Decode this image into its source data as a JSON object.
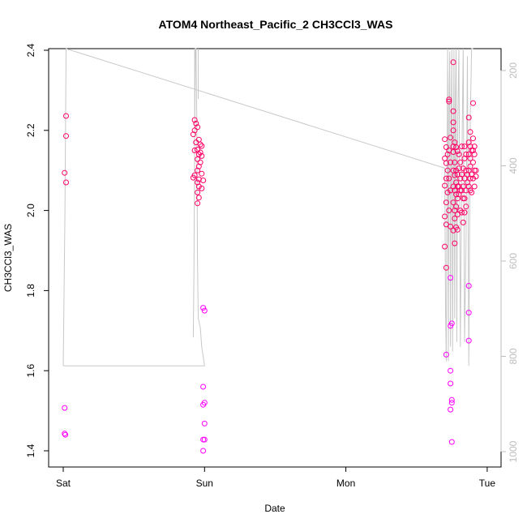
{
  "chart_data": {
    "type": "scatter",
    "title": "ATOM4 Northeast_Pacific_2 CH3CCl3_WAS",
    "xlabel": "Date",
    "ylabel": "CH3CCl3_WAS",
    "x_ticks": [
      "Sat",
      "Sun",
      "Mon",
      "Tue"
    ],
    "x_tick_days": [
      0,
      1,
      2,
      3
    ],
    "xlim_days": [
      -0.03,
      3.07
    ],
    "ylim": [
      1.35,
      2.4
    ],
    "y_ticks": [
      1.4,
      1.6,
      1.8,
      2.0,
      2.2,
      2.4
    ],
    "y2_ticks": [
      200,
      400,
      600,
      800,
      1000
    ],
    "y2lim": [
      1050,
      150
    ],
    "grid": false,
    "series": [
      {
        "marker": "circle-open",
        "color_range": [
          "#ff00ff",
          "#ff0066"
        ],
        "points": [
          [
            0.02,
            2.236
          ],
          [
            0.02,
            2.186
          ],
          [
            0.01,
            2.094
          ],
          [
            0.02,
            2.07
          ],
          [
            0.01,
            1.507
          ],
          [
            0.01,
            1.443
          ],
          [
            0.015,
            1.44
          ],
          [
            0.93,
            2.226
          ],
          [
            0.94,
            2.217
          ],
          [
            0.95,
            2.208
          ],
          [
            0.93,
            2.2
          ],
          [
            0.92,
            2.19
          ],
          [
            0.96,
            2.177
          ],
          [
            0.94,
            2.17
          ],
          [
            0.97,
            2.165
          ],
          [
            0.98,
            2.161
          ],
          [
            0.95,
            2.152
          ],
          [
            0.93,
            2.15
          ],
          [
            0.97,
            2.145
          ],
          [
            0.96,
            2.14
          ],
          [
            0.98,
            2.136
          ],
          [
            0.95,
            2.128
          ],
          [
            0.97,
            2.12
          ],
          [
            0.96,
            2.11
          ],
          [
            0.95,
            2.1
          ],
          [
            0.98,
            2.092
          ],
          [
            0.93,
            2.088
          ],
          [
            0.92,
            2.082
          ],
          [
            0.96,
            2.078
          ],
          [
            0.99,
            2.075
          ],
          [
            0.95,
            2.07
          ],
          [
            0.96,
            2.06
          ],
          [
            0.98,
            2.055
          ],
          [
            0.95,
            2.045
          ],
          [
            0.96,
            2.032
          ],
          [
            0.95,
            2.018
          ],
          [
            0.99,
            1.757
          ],
          [
            1.0,
            1.75
          ],
          [
            0.99,
            1.56
          ],
          [
            1.0,
            1.52
          ],
          [
            0.99,
            1.515
          ],
          [
            1.0,
            1.468
          ],
          [
            0.99,
            1.428
          ],
          [
            1.0,
            1.428
          ],
          [
            0.99,
            1.4
          ],
          [
            2.7,
            2.178
          ],
          [
            2.71,
            2.158
          ],
          [
            2.72,
            2.14
          ],
          [
            2.7,
            2.13
          ],
          [
            2.71,
            2.118
          ],
          [
            2.72,
            2.1
          ],
          [
            2.71,
            2.08
          ],
          [
            2.7,
            2.062
          ],
          [
            2.72,
            2.045
          ],
          [
            2.71,
            2.02
          ],
          [
            2.7,
            1.985
          ],
          [
            2.71,
            1.965
          ],
          [
            2.7,
            1.91
          ],
          [
            2.71,
            1.857
          ],
          [
            2.71,
            1.64
          ],
          [
            2.73,
            2.277
          ],
          [
            2.73,
            2.272
          ],
          [
            2.74,
            2.182
          ],
          [
            2.73,
            2.15
          ],
          [
            2.74,
            2.12
          ],
          [
            2.73,
            2.08
          ],
          [
            2.74,
            2.05
          ],
          [
            2.73,
            2.0
          ],
          [
            2.74,
            1.96
          ],
          [
            2.74,
            1.832
          ],
          [
            2.74,
            1.712
          ],
          [
            2.75,
            1.718
          ],
          [
            2.74,
            1.6
          ],
          [
            2.74,
            1.568
          ],
          [
            2.75,
            1.527
          ],
          [
            2.75,
            1.52
          ],
          [
            2.74,
            1.503
          ],
          [
            2.75,
            1.422
          ],
          [
            2.76,
            2.37
          ],
          [
            2.76,
            2.248
          ],
          [
            2.76,
            2.22
          ],
          [
            2.76,
            2.2
          ],
          [
            2.77,
            2.17
          ],
          [
            2.76,
            2.16
          ],
          [
            2.76,
            2.146
          ],
          [
            2.77,
            2.12
          ],
          [
            2.76,
            2.1
          ],
          [
            2.77,
            2.088
          ],
          [
            2.76,
            2.06
          ],
          [
            2.77,
            2.05
          ],
          [
            2.76,
            2.02
          ],
          [
            2.77,
            2.0
          ],
          [
            2.77,
            1.98
          ],
          [
            2.76,
            1.95
          ],
          [
            2.77,
            1.918
          ],
          [
            2.78,
            2.158
          ],
          [
            2.79,
            2.148
          ],
          [
            2.78,
            2.1
          ],
          [
            2.79,
            2.09
          ],
          [
            2.78,
            2.07
          ],
          [
            2.79,
            2.06
          ],
          [
            2.78,
            2.04
          ],
          [
            2.79,
            2.03
          ],
          [
            2.78,
            2.01
          ],
          [
            2.79,
            1.99
          ],
          [
            2.78,
            1.958
          ],
          [
            2.79,
            1.952
          ],
          [
            2.8,
            2.14
          ],
          [
            2.81,
            2.12
          ],
          [
            2.8,
            2.105
          ],
          [
            2.81,
            2.08
          ],
          [
            2.8,
            2.06
          ],
          [
            2.81,
            2.05
          ],
          [
            2.8,
            2.04
          ],
          [
            2.81,
            2.0
          ],
          [
            2.82,
            2.16
          ],
          [
            2.83,
            2.105
          ],
          [
            2.82,
            2.09
          ],
          [
            2.83,
            2.06
          ],
          [
            2.82,
            2.05
          ],
          [
            2.83,
            2.03
          ],
          [
            2.82,
            1.995
          ],
          [
            2.83,
            1.97
          ],
          [
            2.84,
            2.16
          ],
          [
            2.85,
            2.14
          ],
          [
            2.84,
            2.13
          ],
          [
            2.85,
            2.1
          ],
          [
            2.84,
            2.08
          ],
          [
            2.85,
            2.05
          ],
          [
            2.84,
            2.03
          ],
          [
            2.85,
            2.01
          ],
          [
            2.84,
            1.995
          ],
          [
            2.86,
            2.09
          ],
          [
            2.86,
            2.07
          ],
          [
            2.87,
            2.232
          ],
          [
            2.88,
            2.196
          ],
          [
            2.87,
            2.17
          ],
          [
            2.88,
            2.16
          ],
          [
            2.87,
            2.14
          ],
          [
            2.88,
            2.13
          ],
          [
            2.89,
            2.15
          ],
          [
            2.88,
            2.11
          ],
          [
            2.87,
            2.1
          ],
          [
            2.89,
            2.09
          ],
          [
            2.88,
            2.08
          ],
          [
            2.87,
            2.06
          ],
          [
            2.88,
            2.05
          ],
          [
            2.89,
            2.045
          ],
          [
            2.87,
            1.812
          ],
          [
            2.87,
            1.745
          ],
          [
            2.87,
            1.675
          ],
          [
            2.9,
            2.268
          ],
          [
            2.9,
            2.18
          ],
          [
            2.91,
            2.16
          ],
          [
            2.9,
            2.15
          ],
          [
            2.91,
            2.14
          ],
          [
            2.9,
            2.12
          ],
          [
            2.91,
            2.1
          ],
          [
            2.9,
            2.08
          ],
          [
            2.91,
            2.06
          ],
          [
            2.92,
            2.1
          ],
          [
            2.92,
            2.085
          ]
        ]
      }
    ],
    "line_series": {
      "color": "#c8c8c8",
      "axis": "y2",
      "points": [
        [
          0.0,
          820
        ],
        [
          0.012,
          500
        ],
        [
          0.02,
          150
        ],
        [
          2.7,
          405
        ],
        [
          2.705,
          700
        ],
        [
          2.71,
          810
        ],
        [
          2.715,
          460
        ],
        [
          2.72,
          150
        ],
        [
          2.725,
          810
        ],
        [
          2.73,
          260
        ],
        [
          2.735,
          160
        ],
        [
          2.74,
          780
        ],
        [
          2.745,
          300
        ],
        [
          2.75,
          150
        ],
        [
          2.755,
          790
        ],
        [
          2.76,
          430
        ],
        [
          2.765,
          150
        ],
        [
          2.77,
          720
        ],
        [
          2.775,
          250
        ],
        [
          2.78,
          150
        ],
        [
          2.785,
          770
        ],
        [
          2.79,
          350
        ],
        [
          2.8,
          150
        ],
        [
          2.81,
          780
        ],
        [
          2.82,
          420
        ],
        [
          2.83,
          150
        ],
        [
          2.84,
          770
        ],
        [
          2.85,
          560
        ],
        [
          2.86,
          170
        ],
        [
          2.87,
          820
        ],
        [
          2.88,
          300
        ],
        [
          2.89,
          150
        ],
        [
          2.9,
          150
        ]
      ],
      "segments": [
        [
          [
            0.0,
            820
          ],
          [
            1.0,
            820
          ],
          [
            0.99,
            800
          ],
          [
            0.98,
            780
          ],
          [
            0.97,
            740
          ],
          [
            0.955,
            720
          ],
          [
            0.95,
            600
          ],
          [
            0.945,
            300
          ],
          [
            0.94,
            150
          ],
          [
            0.935,
            150
          ],
          [
            0.93,
            350
          ],
          [
            0.925,
            620
          ],
          [
            0.92,
            760
          ]
        ],
        [
          [
            0.93,
            150
          ],
          [
            0.93,
            300
          ]
        ],
        [
          [
            0.955,
            150
          ],
          [
            0.955,
            260
          ]
        ]
      ]
    }
  }
}
